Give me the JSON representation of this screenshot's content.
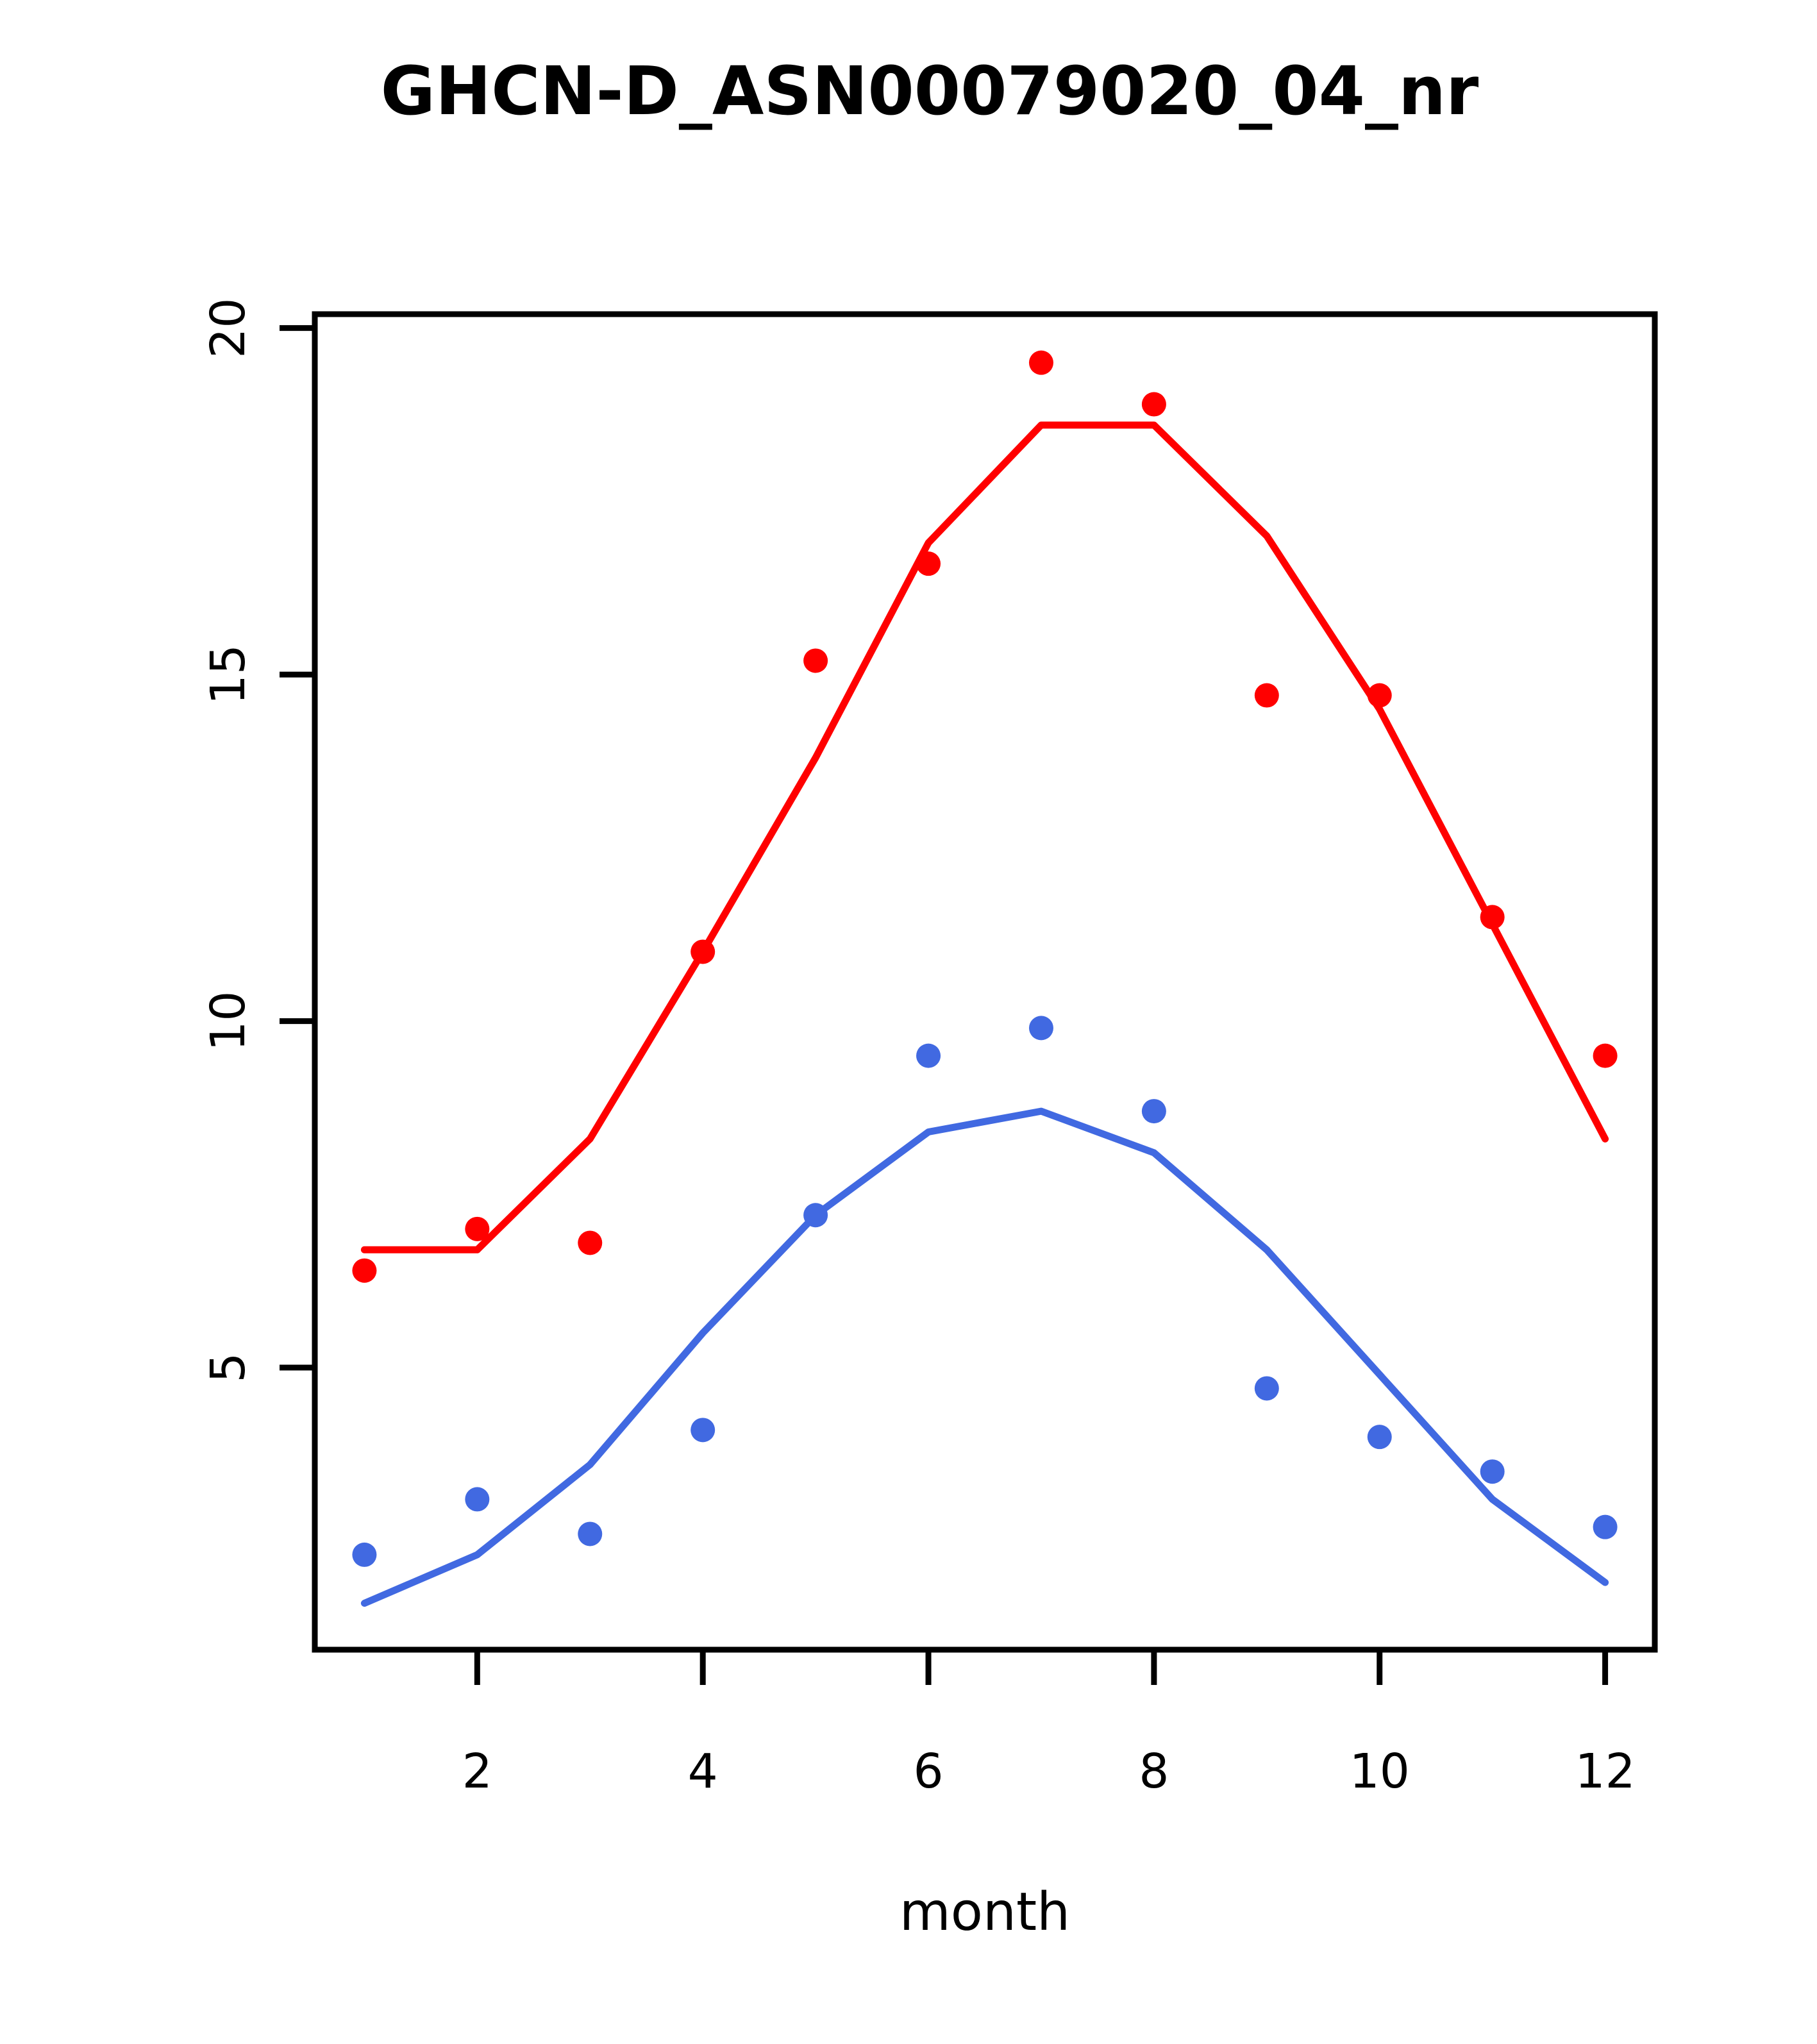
{
  "title": "GHCN-D_ASN00079020_04_nr",
  "xlabel": "month",
  "chart_data": {
    "type": "scatter+line",
    "x": [
      1,
      2,
      3,
      4,
      5,
      6,
      7,
      8,
      9,
      10,
      11,
      12
    ],
    "x_ticks": [
      2,
      4,
      6,
      8,
      10,
      12
    ],
    "y_ticks": [
      5,
      10,
      15,
      20
    ],
    "xlim": [
      0.56,
      12.44
    ],
    "ylim": [
      0.93,
      20.2
    ],
    "grid": "off",
    "legend": "none",
    "colors": {
      "tmax": "#FF0000",
      "tmin": "#4169E1"
    },
    "series": [
      {
        "name": "tmax-points",
        "kind": "scatter",
        "color": "#FF0000",
        "values": [
          6.4,
          7.0,
          6.8,
          11.0,
          15.2,
          16.6,
          19.5,
          18.9,
          14.7,
          14.7,
          11.5,
          9.5
        ]
      },
      {
        "name": "tmax-fit-line",
        "kind": "line",
        "color": "#FF0000",
        "values": [
          6.7,
          6.7,
          8.3,
          11.0,
          13.8,
          16.9,
          18.6,
          18.6,
          17.0,
          14.5,
          11.4,
          8.3
        ]
      },
      {
        "name": "tmin-points",
        "kind": "scatter",
        "color": "#4169E1",
        "values": [
          2.3,
          3.1,
          2.6,
          4.1,
          7.2,
          9.5,
          9.9,
          8.7,
          4.7,
          4.0,
          3.5,
          2.7
        ]
      },
      {
        "name": "tmin-fit-line",
        "kind": "line",
        "color": "#4169E1",
        "values": [
          1.6,
          2.3,
          3.6,
          5.5,
          7.2,
          8.4,
          8.7,
          8.1,
          6.7,
          4.9,
          3.1,
          1.9
        ]
      }
    ]
  }
}
